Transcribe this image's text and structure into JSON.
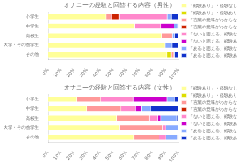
{
  "chart_data": [
    {
      "type": "bar",
      "orientation": "horizontal",
      "stacked": true,
      "grid": false,
      "legend": "right",
      "title": "オナニーの経験と回答する内容（男性）",
      "categories": [
        "その他",
        "大学・その他学生",
        "高校生",
        "中学生",
        "小学生"
      ],
      "xlim": [
        0,
        100
      ],
      "xticks": [
        {
          "value": 0,
          "label": "0%"
        },
        {
          "value": 10,
          "label": "10%"
        },
        {
          "value": 20,
          "label": "20%"
        },
        {
          "value": 30,
          "label": "30%"
        },
        {
          "value": 40,
          "label": "40%"
        },
        {
          "value": 50,
          "label": "50%"
        },
        {
          "value": 60,
          "label": "60%"
        },
        {
          "value": 70,
          "label": "70%"
        },
        {
          "value": 80,
          "label": "80%"
        },
        {
          "value": 90,
          "label": "90%"
        },
        {
          "value": 100,
          "label": "100%"
        }
      ],
      "series": [
        {
          "name": "「経験あり」・経験なし",
          "color": "#FFFF99",
          "values": [
            91.5714,
            89.605,
            87.3418,
            66.13995,
            44.8276
          ]
        },
        {
          "name": "「経験あり」・経験あり",
          "color": "#DDDD00",
          "values": [
            2.8571,
            0,
            0,
            0.11287,
            0
          ]
        },
        {
          "name": "「言葉の意味がわからない」経験なし",
          "color": "#FF9999",
          "values": [
            1.8571,
            0,
            7.8762,
            0,
            4.1379
          ]
        },
        {
          "name": "「言葉の意味がわからない」経験あり",
          "color": "#CC2200",
          "values": [
            0,
            0,
            0,
            0,
            5.5172
          ]
        },
        {
          "name": "「ないと思える」経験なし",
          "color": "#FF88CC",
          "values": [
            0,
            0,
            0,
            20.54176,
            37.2414
          ]
        },
        {
          "name": "「ないと思える」経験あり",
          "color": "#CC00CC",
          "values": [
            0,
            0,
            0,
            9.93228,
            0
          ]
        },
        {
          "name": "「あると思える」経験なし",
          "color": "#88AAFF",
          "values": [
            1.2857,
            5.4054,
            2.391,
            3.0474,
            2.7586
          ]
        },
        {
          "name": "「あると思える」経験あり",
          "color": "#1133CC",
          "values": [
            2.4286,
            4.9896,
            2.391,
            0.22573,
            5.5172
          ]
        }
      ]
    },
    {
      "type": "bar",
      "orientation": "horizontal",
      "stacked": true,
      "grid": false,
      "legend": "right",
      "title": "オナニーの経験と回答する内容（女性）",
      "categories": [
        "その他",
        "大学・その他学生",
        "高校生",
        "中学生",
        "小学生"
      ],
      "xlim": [
        0,
        100
      ],
      "xticks": [
        {
          "value": 0,
          "label": "0%"
        },
        {
          "value": 10,
          "label": "10%"
        },
        {
          "value": 20,
          "label": "20%"
        },
        {
          "value": 30,
          "label": "30%"
        },
        {
          "value": 40,
          "label": "40%"
        },
        {
          "value": 50,
          "label": "50%"
        },
        {
          "value": 60,
          "label": "60%"
        },
        {
          "value": 70,
          "label": "70%"
        },
        {
          "value": 80,
          "label": "80%"
        },
        {
          "value": 90,
          "label": "90%"
        },
        {
          "value": 100,
          "label": "100%"
        }
      ],
      "series": [
        {
          "name": "「経験あり」・経験なし",
          "color": "#FFFF99",
          "values": [
            65.7895,
            54.6512,
            52.7473,
            29.80132,
            22.3108
          ]
        },
        {
          "name": "「経験あり」・経験あり",
          "color": "#DDDD00",
          "values": [
            0,
            0,
            0,
            0,
            0
          ]
        },
        {
          "name": "「言葉の意味がわからない」経験なし",
          "color": "#FF9999",
          "values": [
            19.5906,
            33.3333,
            24.8352,
            26.49007,
            18.3267
          ]
        },
        {
          "name": "「言葉の意味がわからない」経験あり",
          "color": "#CC2200",
          "values": [
            0,
            0,
            0,
            0,
            0
          ]
        },
        {
          "name": "「ないと思える」経験なし",
          "color": "#FF88CC",
          "values": [
            4.9708,
            2.3256,
            6.1538,
            11.09272,
            24.7012
          ]
        },
        {
          "name": "「ないと思える」経験あり",
          "color": "#CC00CC",
          "values": [
            0,
            0,
            3.0769,
            4.13907,
            26.2948
          ]
        },
        {
          "name": "「あると思える」経験なし",
          "color": "#88AAFF",
          "values": [
            9.0643,
            9.6899,
            12.3077,
            7.28477,
            5.5777
          ]
        },
        {
          "name": "「あると思える」経験あり",
          "color": "#1133CC",
          "values": [
            0.5848,
            0,
            0.8791,
            21.19205,
            2.7888
          ]
        }
      ]
    }
  ]
}
